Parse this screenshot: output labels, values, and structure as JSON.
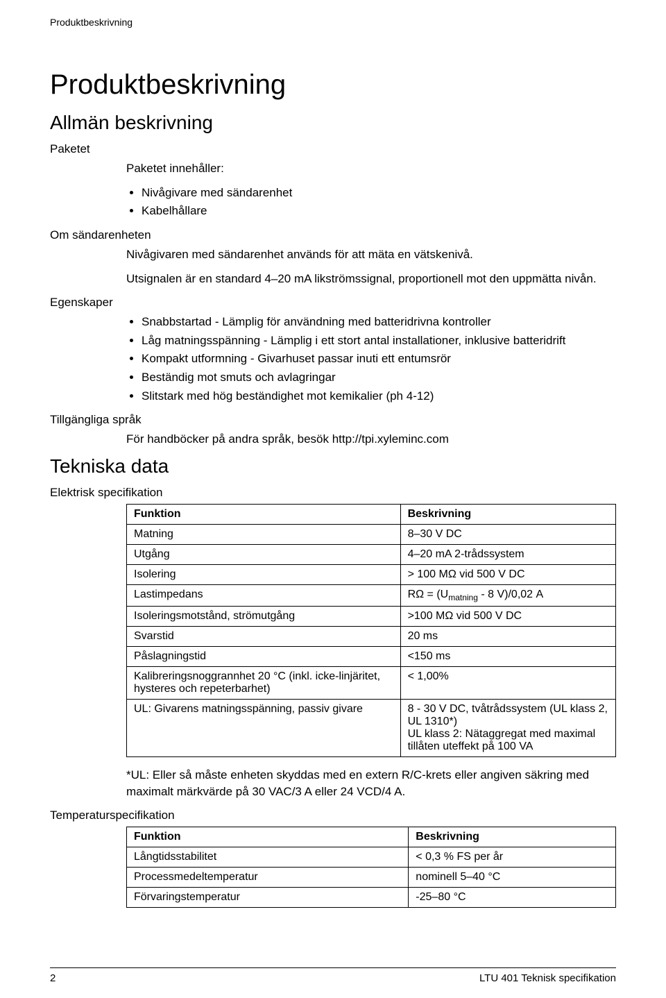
{
  "header": {
    "running": "Produktbeskrivning"
  },
  "title": "Produktbeskrivning",
  "section_general": "Allmän beskrivning",
  "paketet": {
    "label": "Paketet",
    "intro": "Paketet innehåller:",
    "items": [
      "Nivågivare med sändarenhet",
      "Kabelhållare"
    ]
  },
  "om": {
    "label": "Om sändarenheten",
    "p1": "Nivågivaren med sändarenhet används för att mäta en vätskenivå.",
    "p2": "Utsignalen är en standard 4–20 mA likströmssignal, proportionell mot den uppmätta nivån."
  },
  "egenskaper": {
    "label": "Egenskaper",
    "items": [
      "Snabbstartad - Lämplig för användning med batteridrivna kontroller",
      "Låg matningsspänning - Lämplig i ett stort antal installationer, inklusive batteridrift",
      "Kompakt utformning - Givarhuset passar inuti ett entumsrör",
      "Beständig mot smuts och avlagringar",
      "Slitstark med hög beständighet mot kemikalier (ph 4-12)"
    ]
  },
  "sprak": {
    "label": "Tillgängliga språk",
    "text": "För handböcker på andra språk, besök http://tpi.xyleminc.com"
  },
  "section_tech": "Tekniska data",
  "elektrisk": {
    "label": "Elektrisk specifikation",
    "head_func": "Funktion",
    "head_desc": "Beskrivning",
    "rows": [
      {
        "f": "Matning",
        "d": "8–30 V DC"
      },
      {
        "f": "Utgång",
        "d": "4–20 mA 2-trådssystem"
      },
      {
        "f": "Isolering",
        "d": "> 100 MΩ vid 500 V DC"
      },
      {
        "f": "Lastimpedans",
        "d_html": "RΩ = (U<span class=\"sub\">matning</span> - 8 V)/0,02 A"
      },
      {
        "f": "Isoleringsmotstånd, strömutgång",
        "d": ">100 MΩ vid 500 V DC"
      },
      {
        "f": "Svarstid",
        "d": "20 ms"
      },
      {
        "f": "Påslagningstid",
        "d": "<150 ms"
      },
      {
        "f": "Kalibreringsnoggrannhet 20 °C (inkl. icke-linjäritet, hysteres och repeterbarhet)",
        "d": "< 1,00%"
      },
      {
        "f": "UL: Givarens matningsspänning, passiv givare",
        "d": "8 - 30 V DC, tvåtrådssystem (UL klass 2, UL 1310*)\nUL klass 2: Nätaggregat med maximal tillåten uteffekt på 100 VA"
      }
    ],
    "footnote": "*UL: Eller så måste enheten skyddas med en extern R/C-krets eller angiven säkring med maximalt märkvärde på 30 VAC/3 A eller 24 VCD/4 A."
  },
  "temp": {
    "label": "Temperaturspecifikation",
    "head_func": "Funktion",
    "head_desc": "Beskrivning",
    "rows": [
      {
        "f": "Långtidsstabilitet",
        "d": "< 0,3 % FS per år"
      },
      {
        "f": "Processmedeltemperatur",
        "d": "nominell 5–40 °C"
      },
      {
        "f": "Förvaringstemperatur",
        "d": "-25–80 °C"
      }
    ]
  },
  "footer": {
    "page": "2",
    "doc": "LTU 401 Teknisk specifikation"
  }
}
